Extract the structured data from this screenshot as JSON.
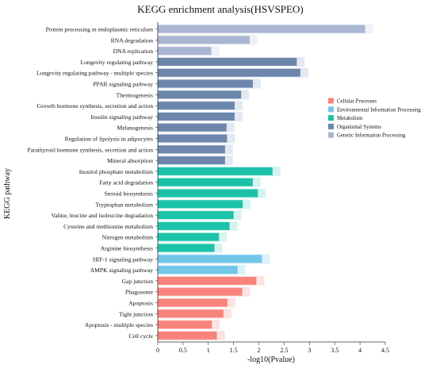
{
  "chart_data": {
    "type": "bar",
    "orientation": "horizontal",
    "title": "KEGG enrichment analysis(HSVSPEO)",
    "xlabel": "-log10(Pvalue)",
    "ylabel": "KEGG pathway",
    "xlim": [
      0,
      4.5
    ],
    "xticks": [
      "0",
      "0.5",
      "1",
      "1.5",
      "2",
      "2.5",
      "3",
      "3.5",
      "4",
      "4.5"
    ],
    "grid": false,
    "legend_position": "right",
    "categories": [
      "Protein processing in endoplasmic reticulum",
      "RNA degradation",
      "DNA replication",
      "Longevity regulating pathway",
      "Longevity regulating pathway - multiple species",
      "PPAR signaling pathway",
      "Thermogenesis",
      "Growth hormone synthesis, secretion and action",
      "Insulin signaling pathway",
      "Melanogenesis",
      "Regulation of lipolysis in adipocytes",
      "Parathyroid hormone synthesis, secretion and action",
      "Mineral absorption",
      "Inositol phosphate metabolism",
      "Fatty acid degradation",
      "Steroid biosynthesis",
      "Tryptophan metabolism",
      "Valine, leucine and isoleucine degradation",
      "Cysteine and methionine metabolism",
      "Nitrogen metabolism",
      "Arginine biosynthesis",
      "HIF-1 signaling pathway",
      "AMPK signaling pathway",
      "Gap junction",
      "Phagosome",
      "Apoptosis",
      "Tight junction",
      "Apoptosis - multiple species",
      "Cell cycle"
    ],
    "values": [
      4.1,
      1.82,
      1.06,
      2.75,
      2.82,
      1.88,
      1.65,
      1.52,
      1.52,
      1.36,
      1.37,
      1.33,
      1.33,
      2.27,
      1.88,
      1.98,
      1.68,
      1.5,
      1.42,
      1.21,
      1.12,
      2.06,
      1.58,
      1.95,
      1.67,
      1.38,
      1.3,
      1.07,
      1.17
    ],
    "groups": [
      4,
      4,
      4,
      3,
      3,
      3,
      3,
      3,
      3,
      3,
      3,
      3,
      3,
      2,
      2,
      2,
      2,
      2,
      2,
      2,
      2,
      1,
      1,
      0,
      0,
      0,
      0,
      0,
      0
    ],
    "legend": [
      {
        "name": "Cellular Processes",
        "color": "#f8837a"
      },
      {
        "name": "Environmental Information Processing",
        "color": "#72c6e8"
      },
      {
        "name": "Metabolism",
        "color": "#1cc2a8"
      },
      {
        "name": "Organismal Systems",
        "color": "#6c86ac"
      },
      {
        "name": "Genetic Information Processing",
        "color": "#a8b6d2"
      }
    ]
  }
}
